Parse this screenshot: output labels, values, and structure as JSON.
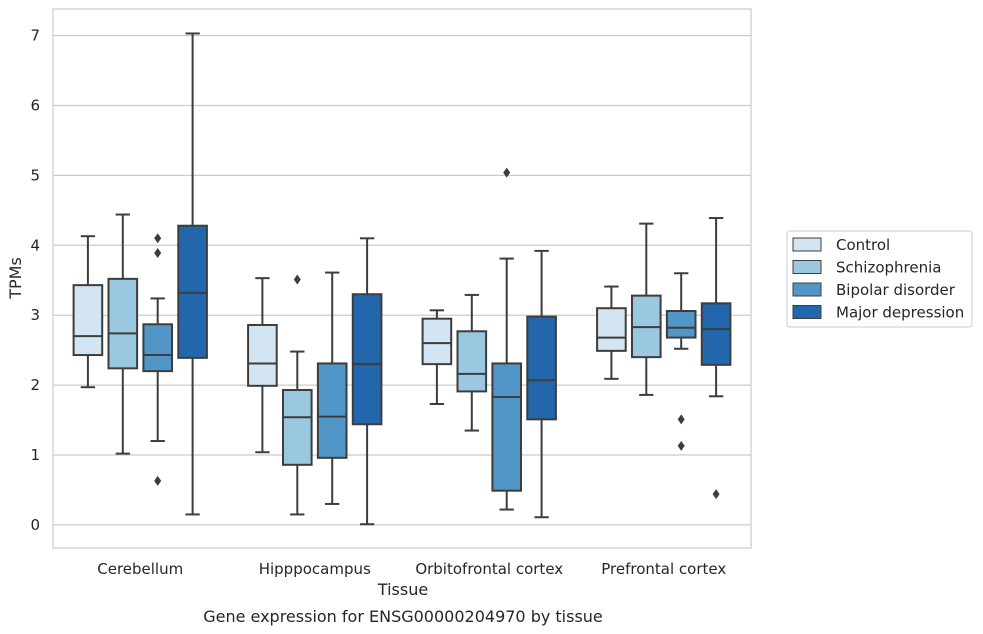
{
  "caption": "Gene expression for ENSG00000204970 by tissue",
  "chart_data": {
    "type": "boxplot",
    "xlabel": "Tissue",
    "ylabel": "TPMs",
    "ylim": [
      -0.33,
      7.38
    ],
    "yticks": [
      0,
      1,
      2,
      3,
      4,
      5,
      6,
      7
    ],
    "grid": true,
    "legend_position": "right",
    "categories": [
      "Cerebellum",
      "Hipppocampus",
      "Orbitofrontal cortex",
      "Prefrontal cortex"
    ],
    "series": [
      {
        "name": "Control",
        "color": "#d3e4f3",
        "boxes": [
          {
            "whislo": 1.97,
            "q1": 2.43,
            "med": 2.7,
            "q3": 3.43,
            "whishi": 4.13,
            "fliers": []
          },
          {
            "whislo": 1.04,
            "q1": 1.99,
            "med": 2.31,
            "q3": 2.86,
            "whishi": 3.53,
            "fliers": []
          },
          {
            "whislo": 1.73,
            "q1": 2.3,
            "med": 2.6,
            "q3": 2.95,
            "whishi": 3.07,
            "fliers": []
          },
          {
            "whislo": 2.09,
            "q1": 2.49,
            "med": 2.68,
            "q3": 3.1,
            "whishi": 3.41,
            "fliers": []
          }
        ]
      },
      {
        "name": "Schizophrenia",
        "color": "#9ac8e0",
        "boxes": [
          {
            "whislo": 1.02,
            "q1": 2.24,
            "med": 2.74,
            "q3": 3.52,
            "whishi": 4.44,
            "fliers": []
          },
          {
            "whislo": 0.15,
            "q1": 0.86,
            "med": 1.54,
            "q3": 1.93,
            "whishi": 2.48,
            "fliers": [
              3.51
            ]
          },
          {
            "whislo": 1.35,
            "q1": 1.91,
            "med": 2.16,
            "q3": 2.77,
            "whishi": 3.29,
            "fliers": []
          },
          {
            "whislo": 1.86,
            "q1": 2.4,
            "med": 2.83,
            "q3": 3.28,
            "whishi": 4.31,
            "fliers": []
          }
        ]
      },
      {
        "name": "Bipolar disorder",
        "color": "#5196c7",
        "boxes": [
          {
            "whislo": 1.2,
            "q1": 2.2,
            "med": 2.43,
            "q3": 2.87,
            "whishi": 3.24,
            "fliers": [
              4.1,
              3.89,
              0.63
            ]
          },
          {
            "whislo": 0.3,
            "q1": 0.96,
            "med": 1.55,
            "q3": 2.31,
            "whishi": 3.61,
            "fliers": []
          },
          {
            "whislo": 0.22,
            "q1": 0.49,
            "med": 1.83,
            "q3": 2.31,
            "whishi": 3.81,
            "fliers": [
              5.04
            ]
          },
          {
            "whislo": 2.52,
            "q1": 2.68,
            "med": 2.82,
            "q3": 3.06,
            "whishi": 3.6,
            "fliers": [
              1.51,
              1.13
            ]
          }
        ]
      },
      {
        "name": "Major depression",
        "color": "#2266ac",
        "boxes": [
          {
            "whislo": 0.15,
            "q1": 2.39,
            "med": 3.32,
            "q3": 4.28,
            "whishi": 7.03,
            "fliers": []
          },
          {
            "whislo": 0.01,
            "q1": 1.44,
            "med": 2.3,
            "q3": 3.3,
            "whishi": 4.1,
            "fliers": []
          },
          {
            "whislo": 0.11,
            "q1": 1.51,
            "med": 2.07,
            "q3": 2.98,
            "whishi": 3.92,
            "fliers": []
          },
          {
            "whislo": 1.84,
            "q1": 2.29,
            "med": 2.8,
            "q3": 3.17,
            "whishi": 4.39,
            "fliers": [
              0.44
            ]
          }
        ]
      }
    ]
  }
}
